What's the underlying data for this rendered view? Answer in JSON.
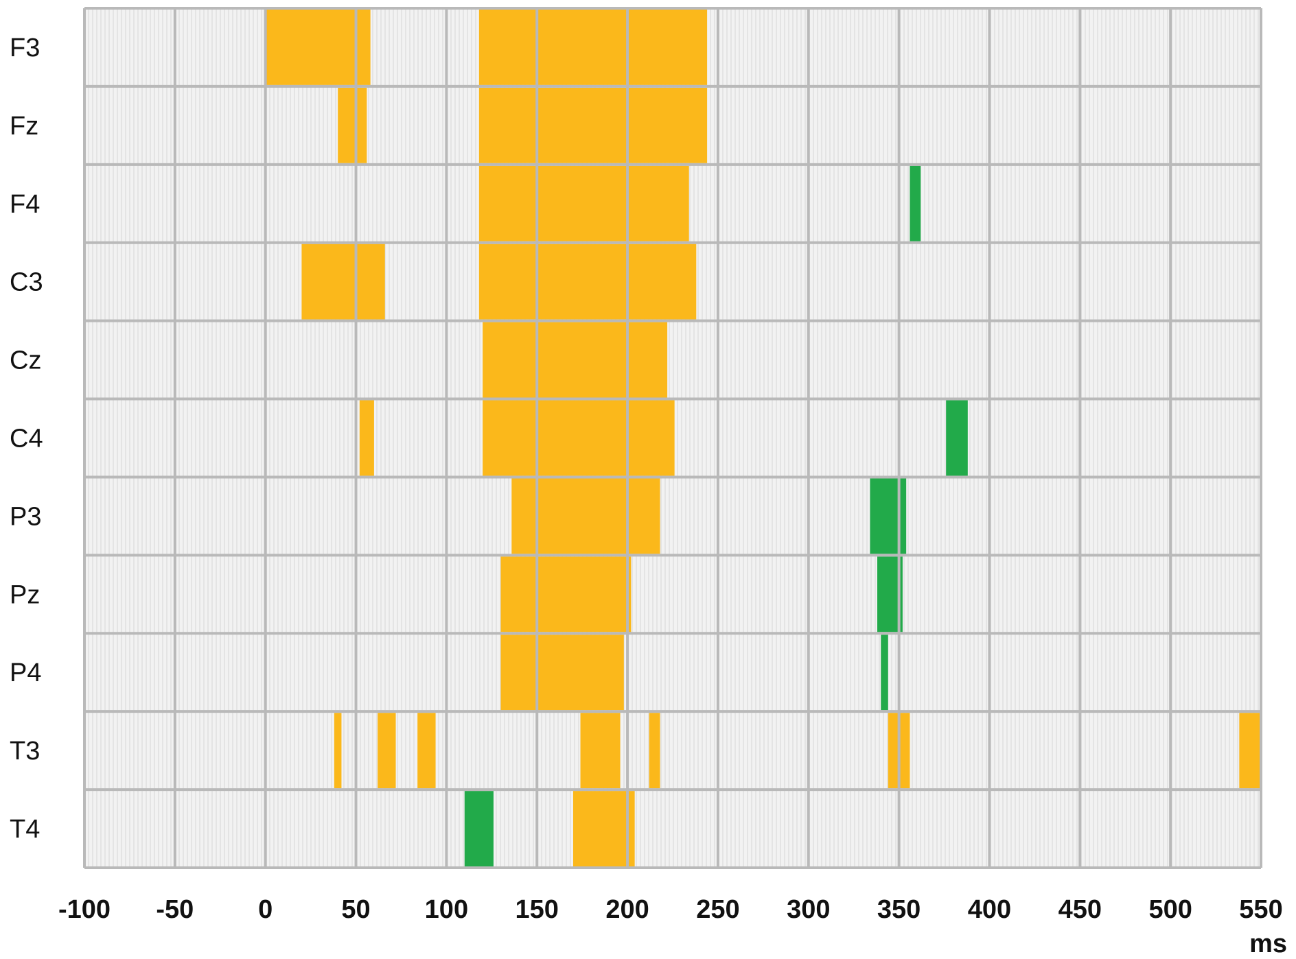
{
  "chart_data": {
    "type": "heatmap",
    "title": "",
    "xlabel": "ms",
    "ylabel": "",
    "xlim": [
      -100,
      550
    ],
    "x_ticks": [
      -100,
      -50,
      0,
      50,
      100,
      150,
      200,
      250,
      300,
      350,
      400,
      450,
      500,
      550
    ],
    "x_tick_labels": [
      "-100",
      "-50",
      "0",
      "50",
      "100",
      "150",
      "200",
      "250",
      "300",
      "350",
      "400",
      "450",
      "500",
      "550"
    ],
    "grid": true,
    "colors": {
      "orange": "#FBB81B",
      "green": "#22AA4A",
      "background": "#F1F1F1",
      "hatch": "#DCDCDC",
      "grid": "#B9B9B9"
    },
    "channels": [
      "F3",
      "Fz",
      "F4",
      "C3",
      "Cz",
      "C4",
      "P3",
      "Pz",
      "P4",
      "T3",
      "T4"
    ],
    "rows": [
      {
        "channel": "F3",
        "segments": [
          {
            "start": 0,
            "end": 58,
            "color": "orange"
          },
          {
            "start": 118,
            "end": 244,
            "color": "orange"
          }
        ]
      },
      {
        "channel": "Fz",
        "segments": [
          {
            "start": 40,
            "end": 56,
            "color": "orange"
          },
          {
            "start": 118,
            "end": 244,
            "color": "orange"
          }
        ]
      },
      {
        "channel": "F4",
        "segments": [
          {
            "start": 118,
            "end": 234,
            "color": "orange"
          },
          {
            "start": 356,
            "end": 362,
            "color": "green"
          }
        ]
      },
      {
        "channel": "C3",
        "segments": [
          {
            "start": 20,
            "end": 66,
            "color": "orange"
          },
          {
            "start": 118,
            "end": 238,
            "color": "orange"
          }
        ]
      },
      {
        "channel": "Cz",
        "segments": [
          {
            "start": 120,
            "end": 222,
            "color": "orange"
          }
        ]
      },
      {
        "channel": "C4",
        "segments": [
          {
            "start": 52,
            "end": 60,
            "color": "orange"
          },
          {
            "start": 120,
            "end": 226,
            "color": "orange"
          },
          {
            "start": 376,
            "end": 388,
            "color": "green"
          }
        ]
      },
      {
        "channel": "P3",
        "segments": [
          {
            "start": 136,
            "end": 218,
            "color": "orange"
          },
          {
            "start": 334,
            "end": 354,
            "color": "green"
          }
        ]
      },
      {
        "channel": "Pz",
        "segments": [
          {
            "start": 130,
            "end": 202,
            "color": "orange"
          },
          {
            "start": 338,
            "end": 352,
            "color": "green"
          }
        ]
      },
      {
        "channel": "P4",
        "segments": [
          {
            "start": 130,
            "end": 198,
            "color": "orange"
          },
          {
            "start": 340,
            "end": 344,
            "color": "green"
          }
        ]
      },
      {
        "channel": "T3",
        "segments": [
          {
            "start": 38,
            "end": 42,
            "color": "orange"
          },
          {
            "start": 62,
            "end": 72,
            "color": "orange"
          },
          {
            "start": 84,
            "end": 94,
            "color": "orange"
          },
          {
            "start": 174,
            "end": 196,
            "color": "orange"
          },
          {
            "start": 212,
            "end": 218,
            "color": "orange"
          },
          {
            "start": 344,
            "end": 356,
            "color": "orange"
          },
          {
            "start": 538,
            "end": 550,
            "color": "orange"
          }
        ]
      },
      {
        "channel": "T4",
        "segments": [
          {
            "start": 110,
            "end": 126,
            "color": "green"
          },
          {
            "start": 170,
            "end": 204,
            "color": "orange"
          }
        ]
      }
    ]
  }
}
